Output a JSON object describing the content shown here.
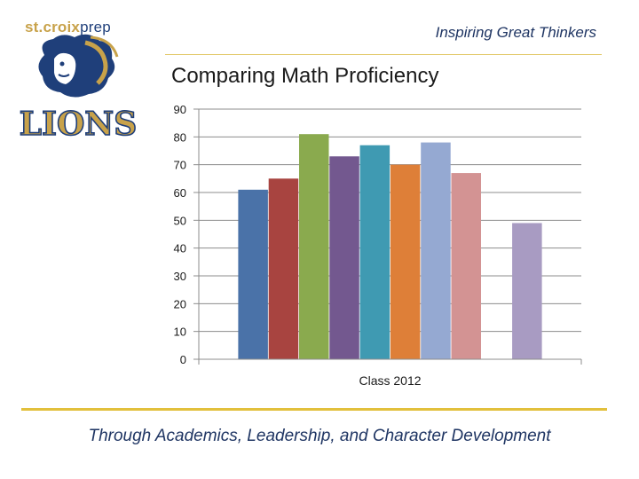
{
  "header": {
    "brand_part1": "st.croix",
    "brand_part2": "prep",
    "logo_text": "LIONS",
    "tagline": "Inspiring Great Thinkers"
  },
  "footer": {
    "text": "Through Academics, Leadership, and Character Development"
  },
  "colors": {
    "gold": "#e2c03c",
    "navy": "#1f3563"
  },
  "chart_data": {
    "type": "bar",
    "title": "Comparing Math Proficiency",
    "categories": [
      "Class 2012"
    ],
    "xlabel": "",
    "ylabel": "",
    "ylim": [
      0,
      90
    ],
    "yticks": [
      0,
      10,
      20,
      30,
      40,
      50,
      60,
      70,
      80,
      90
    ],
    "grid": true,
    "series": [
      {
        "values": [
          61
        ],
        "color": "#4a72a8"
      },
      {
        "values": [
          65
        ],
        "color": "#a84440"
      },
      {
        "values": [
          81
        ],
        "color": "#8aaa4e"
      },
      {
        "values": [
          73
        ],
        "color": "#73588f"
      },
      {
        "values": [
          77
        ],
        "color": "#3f9ab2"
      },
      {
        "values": [
          70
        ],
        "color": "#de7f38"
      },
      {
        "values": [
          78
        ],
        "color": "#95a9d2"
      },
      {
        "values": [
          67
        ],
        "color": "#d39393"
      },
      {
        "values": [
          null
        ],
        "color": "#b3c77e"
      },
      {
        "values": [
          49
        ],
        "color": "#a89bc2"
      }
    ]
  }
}
